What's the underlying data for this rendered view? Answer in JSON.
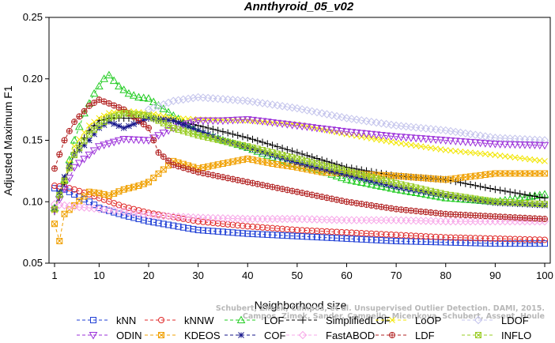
{
  "chart_data": {
    "type": "line",
    "title": "Annthyroid_05_v02",
    "xlabel": "Neighborhood size",
    "ylabel": "Adjusted Maximum F1",
    "xlim": [
      1,
      100
    ],
    "ylim": [
      0.05,
      0.25
    ],
    "xticks": [
      1,
      10,
      20,
      30,
      40,
      50,
      60,
      70,
      80,
      90,
      100
    ],
    "yticks": [
      "0.05",
      "0.10",
      "0.15",
      "0.20",
      "0.25"
    ],
    "credit": [
      "Schubert, Zimek, Campos, et al. Unsupervised Outlier Detection. DAMI, 2015.",
      "Campos, Zimek, Sander, Campello, Micenkova, Schubert, Assent, Houle"
    ],
    "series": [
      {
        "name": "kNN",
        "color": "#1f3fd6",
        "marker": "square",
        "x": [
          1,
          3,
          5,
          8,
          10,
          15,
          20,
          30,
          40,
          50,
          60,
          70,
          80,
          90,
          100
        ],
        "values": [
          0.111,
          0.11,
          0.106,
          0.1,
          0.095,
          0.089,
          0.084,
          0.077,
          0.074,
          0.072,
          0.07,
          0.068,
          0.067,
          0.066,
          0.066
        ]
      },
      {
        "name": "kNNW",
        "color": "#e02a2a",
        "marker": "circle",
        "x": [
          1,
          3,
          5,
          8,
          10,
          15,
          20,
          30,
          40,
          50,
          60,
          70,
          80,
          90,
          100
        ],
        "values": [
          0.113,
          0.112,
          0.11,
          0.106,
          0.103,
          0.096,
          0.091,
          0.084,
          0.08,
          0.077,
          0.075,
          0.073,
          0.071,
          0.07,
          0.069
        ]
      },
      {
        "name": "LOF",
        "color": "#22cc22",
        "marker": "triangle-up",
        "x": [
          1,
          3,
          5,
          7,
          9,
          11,
          12,
          14,
          16,
          18,
          20,
          25,
          30,
          35,
          40,
          45,
          50,
          55,
          60,
          70,
          80,
          90,
          100
        ],
        "values": [
          0.095,
          0.118,
          0.15,
          0.172,
          0.188,
          0.2,
          0.203,
          0.194,
          0.188,
          0.185,
          0.184,
          0.17,
          0.157,
          0.15,
          0.144,
          0.136,
          0.13,
          0.125,
          0.118,
          0.11,
          0.103,
          0.1,
          0.106
        ]
      },
      {
        "name": "SimplifiedLOF",
        "color": "#000000",
        "marker": "plus",
        "x": [
          1,
          3,
          5,
          8,
          10,
          12,
          15,
          20,
          25,
          30,
          40,
          50,
          60,
          70,
          80,
          90,
          100
        ],
        "values": [
          0.092,
          0.115,
          0.14,
          0.158,
          0.166,
          0.168,
          0.168,
          0.168,
          0.166,
          0.162,
          0.152,
          0.14,
          0.128,
          0.121,
          0.118,
          0.11,
          0.103
        ]
      },
      {
        "name": "LoOP",
        "color": "#f2e600",
        "marker": "cross",
        "x": [
          1,
          3,
          5,
          8,
          10,
          12,
          15,
          20,
          25,
          30,
          40,
          50,
          60,
          70,
          80,
          90,
          100
        ],
        "values": [
          0.093,
          0.118,
          0.145,
          0.162,
          0.168,
          0.172,
          0.174,
          0.172,
          0.168,
          0.167,
          0.166,
          0.163,
          0.155,
          0.148,
          0.142,
          0.138,
          0.133
        ]
      },
      {
        "name": "LDOF",
        "color": "#c4c4ec",
        "marker": "diamond",
        "x": [
          20,
          25,
          30,
          40,
          50,
          60,
          70,
          80,
          90,
          100
        ],
        "values": [
          0.175,
          0.182,
          0.185,
          0.182,
          0.176,
          0.168,
          0.162,
          0.158,
          0.152,
          0.15
        ]
      },
      {
        "name": "ODIN",
        "color": "#9b30d9",
        "marker": "triangle-down",
        "x": [
          1,
          5,
          10,
          15,
          20,
          25,
          30,
          35,
          40,
          50,
          60,
          70,
          80,
          90,
          100
        ],
        "values": [
          0.093,
          0.128,
          0.145,
          0.151,
          0.15,
          0.16,
          0.166,
          0.166,
          0.167,
          0.162,
          0.157,
          0.153,
          0.15,
          0.147,
          0.146
        ]
      },
      {
        "name": "KDEOS",
        "color": "#f0a000",
        "marker": "square-x",
        "x": [
          1,
          2,
          3,
          5,
          8,
          10,
          12,
          15,
          18,
          20,
          25,
          30,
          35,
          40,
          45,
          50,
          55,
          60,
          70,
          80,
          90,
          100
        ],
        "values": [
          0.082,
          0.068,
          0.09,
          0.097,
          0.108,
          0.107,
          0.105,
          0.11,
          0.113,
          0.116,
          0.133,
          0.127,
          0.131,
          0.135,
          0.131,
          0.128,
          0.124,
          0.123,
          0.121,
          0.118,
          0.123,
          0.123
        ]
      },
      {
        "name": "COF",
        "color": "#16168a",
        "marker": "asterisk",
        "x": [
          1,
          3,
          5,
          8,
          10,
          12,
          15,
          20,
          25,
          30,
          35,
          40,
          45,
          50,
          60,
          70,
          80,
          90,
          100
        ],
        "values": [
          0.095,
          0.12,
          0.138,
          0.15,
          0.16,
          0.165,
          0.16,
          0.168,
          0.166,
          0.158,
          0.15,
          0.144,
          0.138,
          0.132,
          0.122,
          0.112,
          0.105,
          0.099,
          0.097
        ]
      },
      {
        "name": "FastABOD",
        "color": "#f7a8e8",
        "marker": "diamond",
        "x": [
          1,
          3,
          5,
          8,
          10,
          15,
          20,
          30,
          40,
          50,
          60,
          70,
          80,
          90,
          100
        ],
        "values": [
          0.098,
          0.097,
          0.096,
          0.095,
          0.094,
          0.092,
          0.089,
          0.087,
          0.086,
          0.086,
          0.085,
          0.085,
          0.084,
          0.084,
          0.084
        ]
      },
      {
        "name": "LDF",
        "color": "#b22222",
        "marker": "circle-plus",
        "x": [
          1,
          3,
          5,
          8,
          10,
          12,
          15,
          20,
          22,
          25,
          30,
          40,
          50,
          60,
          70,
          80,
          90,
          100
        ],
        "values": [
          0.127,
          0.15,
          0.165,
          0.178,
          0.183,
          0.18,
          0.175,
          0.16,
          0.14,
          0.13,
          0.124,
          0.116,
          0.108,
          0.1,
          0.094,
          0.09,
          0.088,
          0.086
        ]
      },
      {
        "name": "INFLO",
        "color": "#99cc22",
        "marker": "square-x",
        "x": [
          1,
          3,
          5,
          8,
          10,
          12,
          15,
          20,
          25,
          30,
          40,
          50,
          60,
          70,
          80,
          90,
          100
        ],
        "values": [
          0.094,
          0.117,
          0.138,
          0.155,
          0.162,
          0.168,
          0.172,
          0.17,
          0.16,
          0.154,
          0.145,
          0.135,
          0.125,
          0.115,
          0.106,
          0.1,
          0.098
        ]
      }
    ]
  }
}
